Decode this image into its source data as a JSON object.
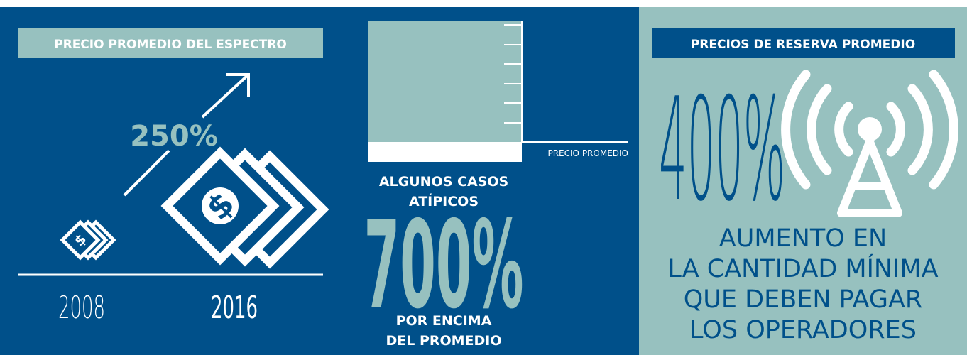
{
  "left_panel": {
    "label": "PRECIO PROMEDIO DEL ESPECTRO",
    "growth": "250%",
    "years": [
      "2008",
      "2016"
    ]
  },
  "middle_panel": {
    "reference_label": "PRECIO PROMEDIO",
    "heading": [
      "ALGUNOS CASOS",
      "ATÍPICOS"
    ],
    "figure": "700%",
    "footer": [
      "POR ENCIMA",
      "DEL PROMEDIO"
    ]
  },
  "right_panel": {
    "label": "PRECIOS DE RESERVA PROMEDIO",
    "figure": "400%",
    "caption": [
      "AUMENTO EN",
      "LA CANTIDAD MÍNIMA",
      "QUE DEBEN PAGAR",
      "LOS OPERADORES"
    ]
  }
}
